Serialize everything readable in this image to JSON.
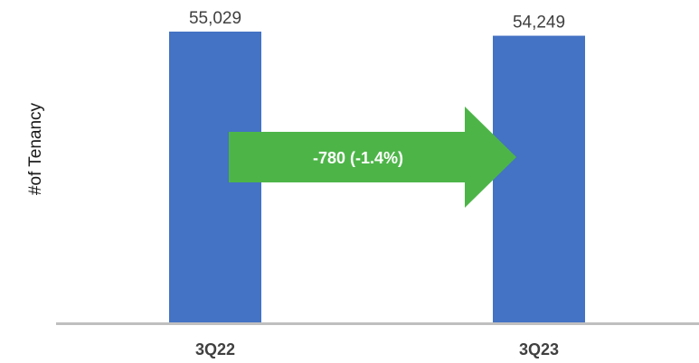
{
  "chart_data": {
    "type": "bar",
    "categories": [
      "3Q22",
      "3Q23"
    ],
    "values": [
      55029,
      54249
    ],
    "value_labels": [
      "55,029",
      "54,249"
    ],
    "ylabel": "#of Tenancy",
    "xlabel": "",
    "title": "",
    "grid": false,
    "bar_color": "#4472C4",
    "axis_color": "#BFBFBF",
    "annotation": {
      "type": "arrow",
      "text": "-780 (-1.4%)",
      "color": "#4DB548",
      "from_category": "3Q22",
      "to_category": "3Q23"
    }
  }
}
